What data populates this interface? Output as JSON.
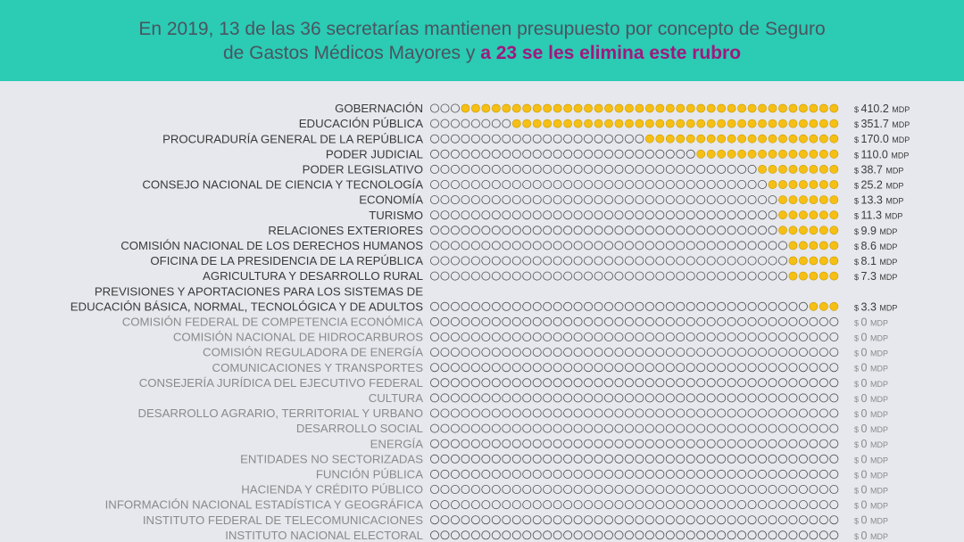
{
  "header": {
    "line1": "En 2019, 13 de las 36 secretarías mantienen presupuesto por concepto de Seguro",
    "line2_prefix": "de Gastos Médicos Mayores y ",
    "line2_highlight": "a 23 se les elimina este rubro"
  },
  "colors": {
    "header_bg": "#2bcbb4",
    "header_text": "#4a5560",
    "highlight": "#a0187e",
    "dot_fill": "#f6bf14",
    "dot_fill_stroke": "#c99a00",
    "dot_empty_stroke": "#4d4d4d",
    "label_active": "#3a3a3a",
    "label_inactive": "#8a8a8a",
    "background": "#e6e8ed"
  },
  "chart_data": {
    "type": "dot-matrix",
    "dots_per_row": 40,
    "value_prefix": "$",
    "unit": "MDP",
    "rows": [
      {
        "label": [
          "GOBERNACIÓN"
        ],
        "value_text": "410.2",
        "value": 410.2,
        "filled": 37
      },
      {
        "label": [
          "EDUCACIÓN PÚBLICA"
        ],
        "value_text": "351.7",
        "value": 351.7,
        "filled": 32
      },
      {
        "label": [
          "PROCURADURÍA GENERAL DE LA REPÚBLICA"
        ],
        "value_text": "170.0",
        "value": 170.0,
        "filled": 19
      },
      {
        "label": [
          "PODER JUDICIAL"
        ],
        "value_text": "110.0",
        "value": 110.0,
        "filled": 14
      },
      {
        "label": [
          "PODER LEGISLATIVO"
        ],
        "value_text": "38.7",
        "value": 38.7,
        "filled": 8
      },
      {
        "label": [
          "CONSEJO NACIONAL DE CIENCIA Y TECNOLOGÍA"
        ],
        "value_text": "25.2",
        "value": 25.2,
        "filled": 7
      },
      {
        "label": [
          "ECONOMÍA"
        ],
        "value_text": "13.3",
        "value": 13.3,
        "filled": 6
      },
      {
        "label": [
          "TURISMO"
        ],
        "value_text": "11.3",
        "value": 11.3,
        "filled": 6
      },
      {
        "label": [
          "RELACIONES EXTERIORES"
        ],
        "value_text": "9.9",
        "value": 9.9,
        "filled": 6
      },
      {
        "label": [
          "COMISIÓN NACIONAL DE LOS DERECHOS HUMANOS"
        ],
        "value_text": "8.6",
        "value": 8.6,
        "filled": 5
      },
      {
        "label": [
          "OFICINA DE LA PRESIDENCIA DE LA REPÚBLICA"
        ],
        "value_text": "8.1",
        "value": 8.1,
        "filled": 5
      },
      {
        "label": [
          "AGRICULTURA Y DESARROLLO RURAL"
        ],
        "value_text": "7.3",
        "value": 7.3,
        "filled": 5
      },
      {
        "label": [
          "PREVISIONES Y APORTACIONES PARA LOS SISTEMAS DE",
          "EDUCACIÓN BÁSICA, NORMAL, TECNOLÓGICA Y DE ADULTOS"
        ],
        "value_text": "3.3",
        "value": 3.3,
        "filled": 3
      },
      {
        "label": [
          "COMISIÓN FEDERAL DE COMPETENCIA ECONÓMICA"
        ],
        "value_text": "0",
        "value": 0,
        "filled": 0
      },
      {
        "label": [
          "COMISIÓN NACIONAL DE HIDROCARBUROS"
        ],
        "value_text": "0",
        "value": 0,
        "filled": 0
      },
      {
        "label": [
          "COMISIÓN REGULADORA DE ENERGÍA"
        ],
        "value_text": "0",
        "value": 0,
        "filled": 0
      },
      {
        "label": [
          "COMUNICACIONES Y TRANSPORTES"
        ],
        "value_text": "0",
        "value": 0,
        "filled": 0
      },
      {
        "label": [
          "CONSEJERÍA JURÍDICA DEL EJECUTIVO FEDERAL"
        ],
        "value_text": "0",
        "value": 0,
        "filled": 0
      },
      {
        "label": [
          "CULTURA"
        ],
        "value_text": "0",
        "value": 0,
        "filled": 0
      },
      {
        "label": [
          "DESARROLLO AGRARIO, TERRITORIAL Y URBANO"
        ],
        "value_text": "0",
        "value": 0,
        "filled": 0
      },
      {
        "label": [
          "DESARROLLO SOCIAL"
        ],
        "value_text": "0",
        "value": 0,
        "filled": 0
      },
      {
        "label": [
          "ENERGÍA"
        ],
        "value_text": "0",
        "value": 0,
        "filled": 0
      },
      {
        "label": [
          "ENTIDADES NO SECTORIZADAS"
        ],
        "value_text": "0",
        "value": 0,
        "filled": 0
      },
      {
        "label": [
          "FUNCIÓN PÚBLICA"
        ],
        "value_text": "0",
        "value": 0,
        "filled": 0
      },
      {
        "label": [
          "HACIENDA Y CRÉDITO PÚBLICO"
        ],
        "value_text": "0",
        "value": 0,
        "filled": 0
      },
      {
        "label": [
          "INFORMACIÓN NACIONAL ESTADÍSTICA Y GEOGRÁFICA"
        ],
        "value_text": "0",
        "value": 0,
        "filled": 0
      },
      {
        "label": [
          "INSTITUTO FEDERAL DE TELECOMUNICACIONES"
        ],
        "value_text": "0",
        "value": 0,
        "filled": 0
      },
      {
        "label": [
          "INSTITUTO NACIONAL ELECTORAL"
        ],
        "value_text": "0",
        "value": 0,
        "filled": 0
      }
    ]
  }
}
